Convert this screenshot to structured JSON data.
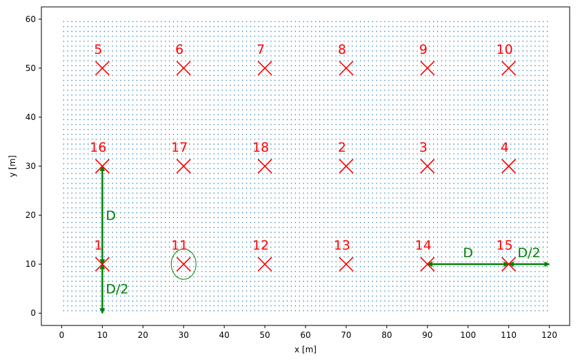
{
  "chart_data": {
    "type": "scatter",
    "xlabel": "x [m]",
    "ylabel": "y [m]",
    "xlim": [
      -5,
      125
    ],
    "ylim": [
      -2.5,
      62.5
    ],
    "xticks": [
      0,
      10,
      20,
      30,
      40,
      50,
      60,
      70,
      80,
      90,
      100,
      110,
      120
    ],
    "yticks": [
      0,
      10,
      20,
      30,
      40,
      50,
      60
    ],
    "grid": false,
    "grid_points": {
      "x_range": [
        0,
        120
      ],
      "y_range": [
        0,
        60
      ],
      "x_step": 1,
      "y_step": 1,
      "color": "#1f77b4"
    },
    "markers": {
      "color": "#ff0000",
      "points": [
        {
          "label": "1",
          "x": 10,
          "y": 10
        },
        {
          "label": "11",
          "x": 30,
          "y": 10
        },
        {
          "label": "12",
          "x": 50,
          "y": 10
        },
        {
          "label": "13",
          "x": 70,
          "y": 10
        },
        {
          "label": "14",
          "x": 90,
          "y": 10
        },
        {
          "label": "15",
          "x": 110,
          "y": 10
        },
        {
          "label": "16",
          "x": 10,
          "y": 30
        },
        {
          "label": "17",
          "x": 30,
          "y": 30
        },
        {
          "label": "18",
          "x": 50,
          "y": 30
        },
        {
          "label": "2",
          "x": 70,
          "y": 30
        },
        {
          "label": "3",
          "x": 90,
          "y": 30
        },
        {
          "label": "4",
          "x": 110,
          "y": 30
        },
        {
          "label": "5",
          "x": 10,
          "y": 50
        },
        {
          "label": "6",
          "x": 30,
          "y": 50
        },
        {
          "label": "7",
          "x": 50,
          "y": 50
        },
        {
          "label": "8",
          "x": 70,
          "y": 50
        },
        {
          "label": "9",
          "x": 90,
          "y": 50
        },
        {
          "label": "10",
          "x": 110,
          "y": 50
        }
      ]
    },
    "annotations": {
      "color": "#008000",
      "arrows": [
        {
          "label": "D",
          "from": [
            10,
            10
          ],
          "to": [
            10,
            30
          ]
        },
        {
          "label": "D/2",
          "from": [
            10,
            0
          ],
          "to": [
            10,
            10
          ]
        },
        {
          "label": "D",
          "from": [
            90,
            10
          ],
          "to": [
            110,
            10
          ]
        },
        {
          "label": "D/2",
          "from": [
            110,
            10
          ],
          "to": [
            120,
            10
          ]
        }
      ],
      "highlight_circle": {
        "x": 30,
        "y": 10
      }
    }
  }
}
